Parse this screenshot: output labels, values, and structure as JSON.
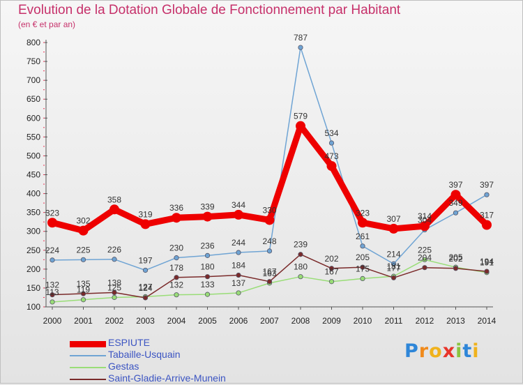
{
  "header": {
    "title": "Evolution de la Dotation Globale de Fonctionnement par Habitant",
    "subtitle": "(en € et par an)"
  },
  "chart_data": {
    "type": "line",
    "title": "Evolution de la Dotation Globale de Fonctionnement par Habitant",
    "subtitle": "(en € et par an)",
    "x": [
      "2000",
      "2001",
      "2002",
      "2003",
      "2004",
      "2005",
      "2006",
      "2007",
      "2008",
      "2009",
      "2010",
      "2011",
      "2012",
      "2013",
      "2014"
    ],
    "ylim": [
      100,
      800
    ],
    "yticks": [
      100,
      150,
      200,
      250,
      300,
      350,
      400,
      450,
      500,
      550,
      600,
      650,
      700,
      750,
      800
    ],
    "grid": false,
    "legend_position": "bottom-left",
    "series": [
      {
        "name": "ESPIUTE",
        "color": "#ee0000",
        "values": [
          323,
          302,
          358,
          319,
          336,
          339,
          344,
          330,
          579,
          473,
          323,
          307,
          314,
          397,
          317
        ]
      },
      {
        "name": "Tabaille-Usquain",
        "color": "#6fa4d4",
        "values": [
          224,
          225,
          226,
          197,
          230,
          236,
          244,
          248,
          787,
          534,
          261,
          214,
          304,
          349,
          397
        ]
      },
      {
        "name": "Gestas",
        "color": "#99dd77",
        "values": [
          113,
          119,
          125,
          127,
          132,
          133,
          137,
          163,
          180,
          167,
          175,
          181,
          225,
          205,
          191
        ]
      },
      {
        "name": "Saint-Gladie-Arrive-Munein",
        "color": "#7a2a2a",
        "values": [
          132,
          135,
          138,
          124,
          178,
          180,
          184,
          167,
          239,
          202,
          205,
          177,
          204,
          202,
          194
        ]
      }
    ]
  },
  "logo": {
    "letters": [
      {
        "ch": "P",
        "color": "#2e86d8"
      },
      {
        "ch": "r",
        "color": "#f08a1c"
      },
      {
        "ch": "o",
        "color": "#f0b21c"
      },
      {
        "ch": "x",
        "color": "#e8342a"
      },
      {
        "ch": "i",
        "color": "#8bc43f"
      },
      {
        "ch": "t",
        "color": "#2e86d8"
      },
      {
        "ch": "i",
        "color": "#f0b21c"
      }
    ]
  }
}
